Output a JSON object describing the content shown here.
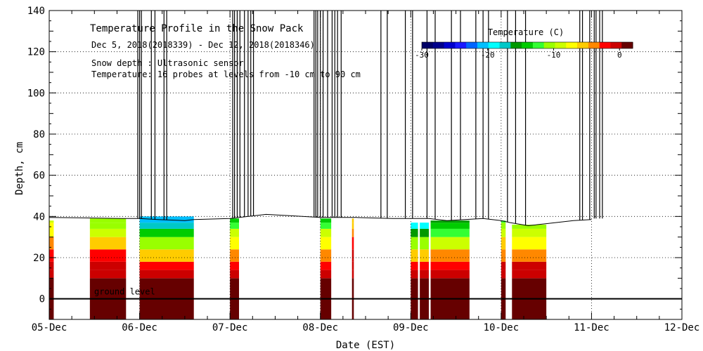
{
  "chart_data": {
    "type": "heatmap",
    "title": "Temperature Profile in the Snow Pack",
    "subtitle": "Dec  5, 2018(2018339) - Dec 12, 2018(2018346)",
    "notes": [
      "Snow depth : Ultrasonic sensor",
      "Temperature: 16 probes at levels from -10 cm to 90 cm"
    ],
    "xlabel": "Date (EST)",
    "ylabel": "Depth, cm",
    "x_ticks": [
      "05-Dec",
      "06-Dec",
      "07-Dec",
      "08-Dec",
      "09-Dec",
      "10-Dec",
      "11-Dec",
      "12-Dec"
    ],
    "xlim_days": [
      0,
      7
    ],
    "ylim": [
      -10,
      140
    ],
    "y_ticks": [
      0,
      20,
      40,
      60,
      80,
      100,
      120,
      140
    ],
    "grid": true,
    "ground_level_label": "ground level",
    "colorbar": {
      "title": "Temperature (C)",
      "range": [
        -30,
        2
      ],
      "tick_values": [
        -30,
        -20,
        -10,
        0
      ],
      "tick_labels": [
        "-30",
        "-20",
        "-10",
        "0"
      ],
      "colors": [
        "#000066",
        "#00008b",
        "#0000cd",
        "#1a1aff",
        "#0066ff",
        "#00bfff",
        "#00ffff",
        "#00c8c8",
        "#009900",
        "#00cc00",
        "#33ff33",
        "#99ff00",
        "#ccff00",
        "#ffff00",
        "#ffcc00",
        "#ff8800",
        "#ff0000",
        "#cc0000",
        "#660000"
      ]
    },
    "snow_depth_series": {
      "name": "Snow depth",
      "points": [
        [
          0.0,
          39.5
        ],
        [
          0.4,
          39.3
        ],
        [
          0.8,
          39.0
        ],
        [
          1.0,
          39.0
        ],
        [
          1.2,
          38.5
        ],
        [
          1.5,
          38.0
        ],
        [
          1.6,
          38.5
        ],
        [
          2.0,
          39.0
        ],
        [
          2.4,
          41.0
        ],
        [
          2.8,
          40.0
        ],
        [
          3.0,
          39.5
        ],
        [
          3.4,
          39.5
        ],
        [
          3.8,
          39.0
        ],
        [
          4.0,
          39.0
        ],
        [
          4.2,
          39.0
        ],
        [
          4.4,
          38.0
        ],
        [
          4.6,
          38.5
        ],
        [
          4.8,
          39.0
        ],
        [
          5.0,
          38.0
        ],
        [
          5.1,
          37.0
        ],
        [
          5.3,
          35.5
        ],
        [
          5.5,
          36.5
        ],
        [
          5.8,
          38.0
        ],
        [
          6.0,
          38.5
        ]
      ]
    },
    "temperature_profile_segments": [
      {
        "start_day": 0.0,
        "end_day": 0.05,
        "surface_temp_c": -9,
        "top_cm": 38
      },
      {
        "start_day": 0.45,
        "end_day": 0.85,
        "surface_temp_c": -12,
        "top_cm": 39
      },
      {
        "start_day": 1.0,
        "end_day": 1.6,
        "surface_temp_c": -22,
        "top_cm": 40
      },
      {
        "start_day": 2.0,
        "end_day": 2.1,
        "surface_temp_c": -14,
        "top_cm": 39
      },
      {
        "start_day": 3.0,
        "end_day": 3.12,
        "surface_temp_c": -14,
        "top_cm": 39
      },
      {
        "start_day": 3.35,
        "end_day": 3.37,
        "surface_temp_c": -6,
        "top_cm": 39
      },
      {
        "start_day": 4.0,
        "end_day": 4.08,
        "surface_temp_c": -20,
        "top_cm": 37
      },
      {
        "start_day": 4.1,
        "end_day": 4.2,
        "surface_temp_c": -20,
        "top_cm": 37
      },
      {
        "start_day": 4.22,
        "end_day": 4.65,
        "surface_temp_c": -16,
        "top_cm": 38
      },
      {
        "start_day": 5.0,
        "end_day": 5.05,
        "surface_temp_c": -12,
        "top_cm": 38
      },
      {
        "start_day": 5.12,
        "end_day": 5.5,
        "surface_temp_c": -12,
        "top_cm": 36
      }
    ]
  }
}
